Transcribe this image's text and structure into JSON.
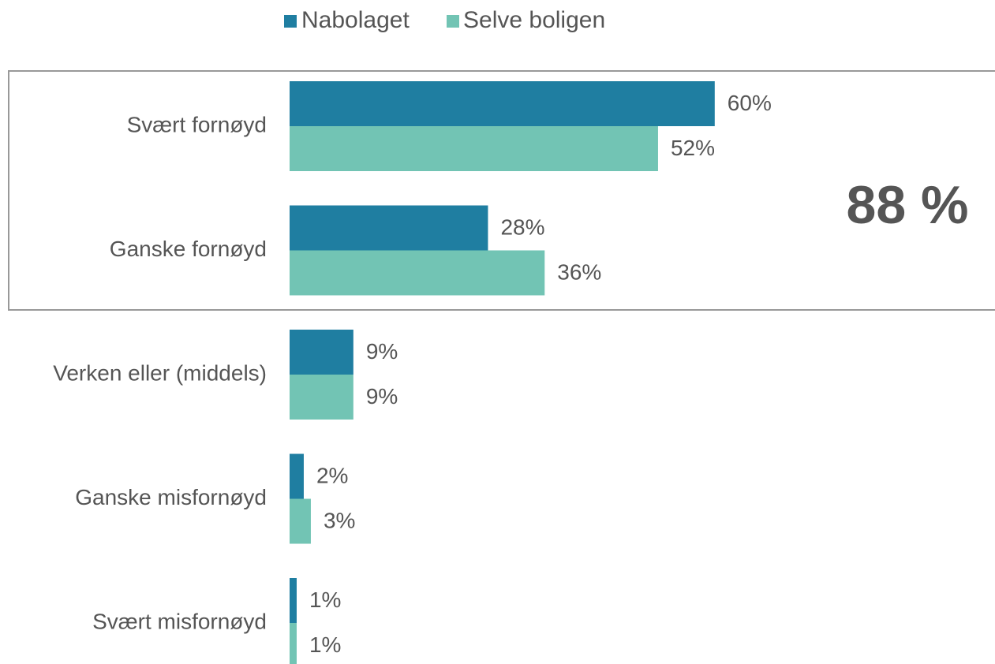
{
  "chart_data": {
    "type": "bar",
    "orientation": "horizontal",
    "categories": [
      "Svært fornøyd",
      "Ganske fornøyd",
      "Verken eller (middels)",
      "Ganske misfornøyd",
      "Svært misfornøyd"
    ],
    "series": [
      {
        "name": "Nabolaget",
        "color": "#1f7ea1",
        "values": [
          60,
          28,
          9,
          2,
          1
        ],
        "value_labels": [
          "60%",
          "28%",
          "9%",
          "2%",
          "1%"
        ]
      },
      {
        "name": "Selve boligen",
        "color": "#72c4b4",
        "values": [
          52,
          36,
          9,
          3,
          1
        ],
        "value_labels": [
          "52%",
          "36%",
          "9%",
          "3%",
          "1%"
        ]
      }
    ],
    "annotation": "88 %",
    "legend": "top"
  }
}
